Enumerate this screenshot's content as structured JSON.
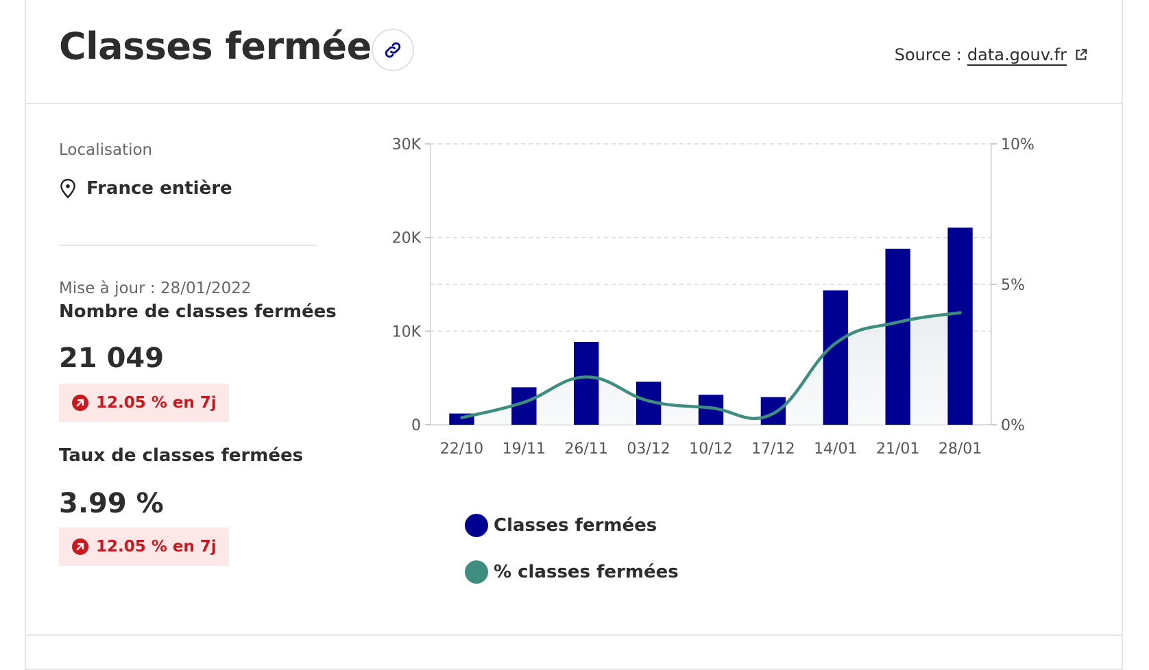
{
  "header": {
    "title": "Classes fermées",
    "source_prefix": "Source :",
    "source_link": "data.gouv.fr"
  },
  "sidebar": {
    "location_label": "Localisation",
    "location_value": "France entière",
    "updated": "Mise à jour : 28/01/2022",
    "metrics": [
      {
        "title": "Nombre de classes fermées",
        "value": "21 049",
        "badge": "12.05 % en 7j"
      },
      {
        "title": "Taux de classes fermées",
        "value": "3.99 %",
        "badge": "12.05 % en 7j"
      }
    ]
  },
  "colors": {
    "bar": "#000091",
    "line": "#3e8d7f",
    "badge_bg": "#fde8e8",
    "badge_text": "#c9191e"
  },
  "chart_data": {
    "type": "bar",
    "categories": [
      "22/10",
      "19/11",
      "26/11",
      "03/12",
      "10/12",
      "17/12",
      "14/01",
      "21/01",
      "28/01"
    ],
    "series": [
      {
        "name": "Classes fermées",
        "type": "bar",
        "axis": "left",
        "values": [
          1200,
          4000,
          8850,
          4600,
          3200,
          2950,
          14350,
          18800,
          21049
        ]
      },
      {
        "name": "% classes fermées",
        "type": "line",
        "axis": "right",
        "values": [
          0.25,
          0.8,
          1.7,
          0.85,
          0.6,
          0.4,
          2.9,
          3.65,
          3.99
        ]
      }
    ],
    "y_left": {
      "min": 0,
      "max": 30000,
      "ticks": [
        0,
        10000,
        20000,
        30000
      ],
      "tick_labels": [
        "0",
        "10K",
        "20K",
        "30K"
      ]
    },
    "y_right": {
      "min": 0,
      "max": 10,
      "ticks": [
        0,
        5,
        10
      ],
      "tick_labels": [
        "0%",
        "5%",
        "10%"
      ]
    },
    "grid": true,
    "legend": [
      "Classes fermées",
      "% classes fermées"
    ],
    "legend_position": "bottom-left"
  }
}
